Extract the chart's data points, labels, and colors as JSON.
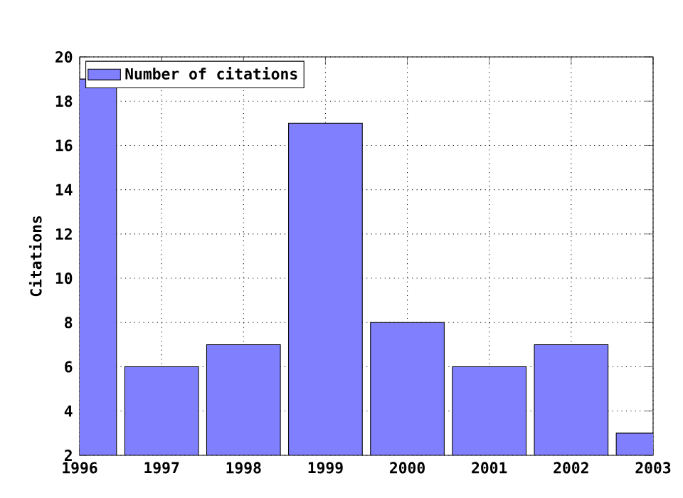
{
  "chart_data": {
    "type": "bar",
    "ylabel": "Citations",
    "x": [
      1996,
      1997,
      1998,
      1999,
      2000,
      2001,
      2002,
      2003
    ],
    "series": [
      {
        "name": "Number of citations",
        "color": "#8080ff",
        "values": [
          19,
          6,
          7,
          17,
          8,
          6,
          7,
          3
        ]
      }
    ],
    "xlim": [
      1996,
      2003
    ],
    "xticks": [
      1996,
      1997,
      1998,
      1999,
      2000,
      2001,
      2002,
      2003
    ],
    "ylim": [
      2,
      20
    ],
    "yticks": [
      2,
      4,
      6,
      8,
      10,
      12,
      14,
      16,
      18,
      20
    ],
    "grid": true,
    "legend": "top left"
  }
}
